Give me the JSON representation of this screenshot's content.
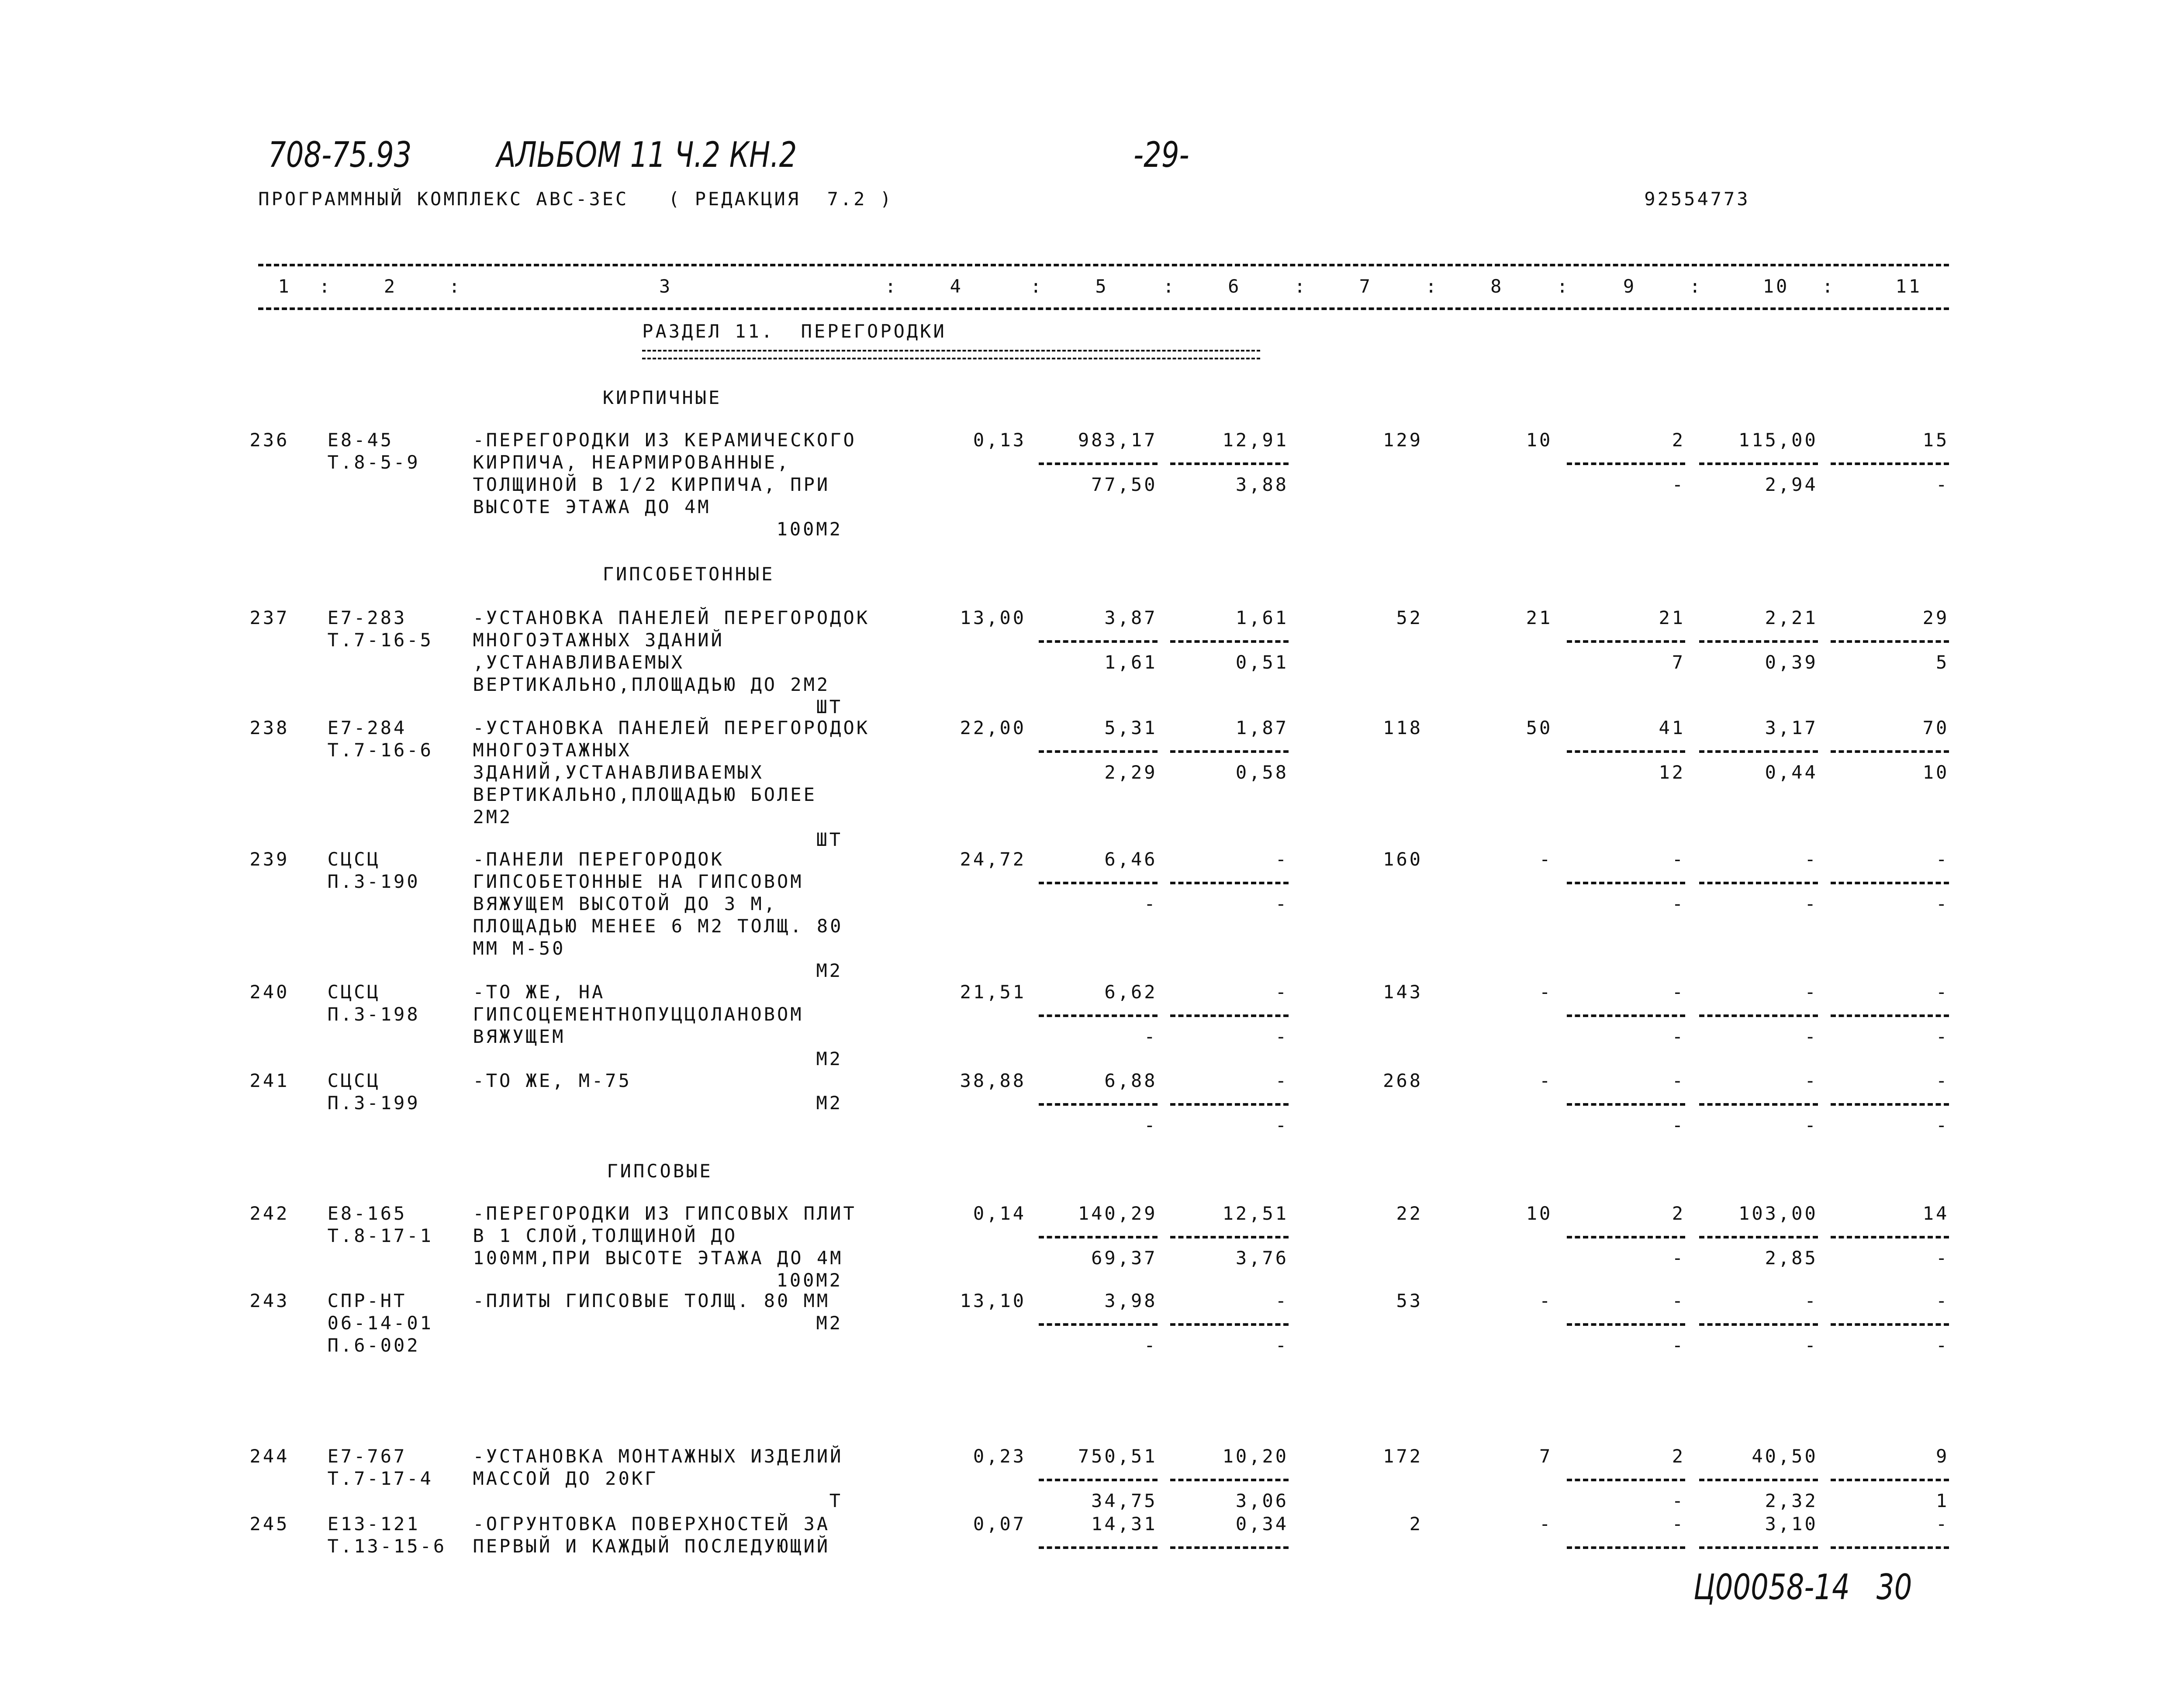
{
  "header": {
    "doc_number": "708-75.93",
    "album": "АЛЬБОМ 11 Ч.2 КН.2",
    "page": "-29-",
    "program": "ПРОГРАММНЫЙ КОМПЛЕКС АВС-3ЕС   ( РЕДАКЦИЯ  7.2 )",
    "code": "92554773"
  },
  "table": {
    "column_numbers": [
      "1",
      "2",
      "3",
      "4",
      "5",
      "6",
      "7",
      "8",
      "9",
      "10",
      "11"
    ],
    "section_title": "РАЗДЕЛ 11.  ПЕРЕГОРОДКИ",
    "groups": [
      "КИРПИЧНЫЕ",
      "ГИПСОБЕТОННЫЕ",
      "ГИПСОВЫЕ"
    ],
    "items": [
      {
        "num": "236",
        "code": [
          "Е8-45",
          "Т.8-5-9"
        ],
        "desc": [
          "-ПЕРЕГОРОДКИ ИЗ КЕРАМИЧЕСКОГО",
          "КИРПИЧА, НЕАРМИРОВАННЫЕ,",
          "ТОЛЩИНОЙ В 1/2 КИРПИЧА, ПРИ",
          "ВЫСОТЕ ЭТАЖА ДО 4М"
        ],
        "unit": "100М2",
        "c4": "0,13",
        "c5": [
          "983,17",
          "77,50"
        ],
        "c6": [
          "12,91",
          "3,88"
        ],
        "c7": "129",
        "c8": "10",
        "c9": [
          "2",
          "-"
        ],
        "c10": [
          "115,00",
          "2,94"
        ],
        "c11": [
          "15",
          "-"
        ]
      },
      {
        "num": "237",
        "code": [
          "Е7-283",
          "Т.7-16-5"
        ],
        "desc": [
          "-УСТАНОВКА ПАНЕЛЕЙ ПЕРЕГОРОДОК",
          "МНОГОЭТАЖНЫХ ЗДАНИЙ",
          ",УСТАНАВЛИВАЕМЫХ",
          "ВЕРТИКАЛЬНО,ПЛОЩАДЬЮ ДО 2М2"
        ],
        "unit": "ШТ",
        "c4": "13,00",
        "c5": [
          "3,87",
          "1,61"
        ],
        "c6": [
          "1,61",
          "0,51"
        ],
        "c7": "52",
        "c8": "21",
        "c9": [
          "21",
          "7"
        ],
        "c10": [
          "2,21",
          "0,39"
        ],
        "c11": [
          "29",
          "5"
        ]
      },
      {
        "num": "238",
        "code": [
          "Е7-284",
          "Т.7-16-6"
        ],
        "desc": [
          "-УСТАНОВКА ПАНЕЛЕЙ ПЕРЕГОРОДОК",
          "МНОГОЭТАЖНЫХ",
          "ЗДАНИЙ,УСТАНАВЛИВАЕМЫХ",
          "ВЕРТИКАЛЬНО,ПЛОЩАДЬЮ БОЛЕЕ",
          "2М2"
        ],
        "unit": "ШТ",
        "c4": "22,00",
        "c5": [
          "5,31",
          "2,29"
        ],
        "c6": [
          "1,87",
          "0,58"
        ],
        "c7": "118",
        "c8": "50",
        "c9": [
          "41",
          "12"
        ],
        "c10": [
          "3,17",
          "0,44"
        ],
        "c11": [
          "70",
          "10"
        ]
      },
      {
        "num": "239",
        "code": [
          "СЦСЦ",
          "П.3-190"
        ],
        "desc": [
          "-ПАНЕЛИ ПЕРЕГОРОДОК",
          "ГИПСОБЕТОННЫЕ НА ГИПСОВОМ",
          "ВЯЖУЩЕМ ВЫСОТОЙ ДО 3 М,",
          "ПЛОЩАДЬЮ МЕНЕЕ 6 М2 ТОЛЩ. 80",
          "ММ М-50"
        ],
        "unit": "М2",
        "c4": "24,72",
        "c5": [
          "6,46",
          "-"
        ],
        "c6": [
          "-",
          "-"
        ],
        "c7": "160",
        "c8": "-",
        "c9": [
          "-",
          "-"
        ],
        "c10": [
          "-",
          "-"
        ],
        "c11": [
          "-",
          "-"
        ]
      },
      {
        "num": "240",
        "code": [
          "СЦСЦ",
          "П.3-198"
        ],
        "desc": [
          "-ТО ЖЕ, НА",
          "ГИПСОЦЕМЕНТНОПУЦЦОЛАНОВОМ",
          "ВЯЖУЩЕМ"
        ],
        "unit": "М2",
        "c4": "21,51",
        "c5": [
          "6,62",
          "-"
        ],
        "c6": [
          "-",
          "-"
        ],
        "c7": "143",
        "c8": "-",
        "c9": [
          "-",
          "-"
        ],
        "c10": [
          "-",
          "-"
        ],
        "c11": [
          "-",
          "-"
        ]
      },
      {
        "num": "241",
        "code": [
          "СЦСЦ",
          "П.3-199"
        ],
        "desc": [
          "-ТО ЖЕ, М-75"
        ],
        "unit": "М2",
        "c4": "38,88",
        "c5": [
          "6,88",
          "-"
        ],
        "c6": [
          "-",
          "-"
        ],
        "c7": "268",
        "c8": "-",
        "c9": [
          "-",
          "-"
        ],
        "c10": [
          "-",
          "-"
        ],
        "c11": [
          "-",
          "-"
        ]
      },
      {
        "num": "242",
        "code": [
          "Е8-165",
          "Т.8-17-1"
        ],
        "desc": [
          "-ПЕРЕГОРОДКИ ИЗ ГИПСОВЫХ ПЛИТ",
          "В 1 СЛОЙ,ТОЛЩИНОЙ ДО",
          "100ММ,ПРИ ВЫСОТЕ ЭТАЖА ДО 4М"
        ],
        "unit": "100М2",
        "c4": "0,14",
        "c5": [
          "140,29",
          "69,37"
        ],
        "c6": [
          "12,51",
          "3,76"
        ],
        "c7": "22",
        "c8": "10",
        "c9": [
          "2",
          "-"
        ],
        "c10": [
          "103,00",
          "2,85"
        ],
        "c11": [
          "14",
          "-"
        ]
      },
      {
        "num": "243",
        "code": [
          "СПР-НТ",
          "06-14-01",
          "П.6-002"
        ],
        "desc": [
          "-ПЛИТЫ ГИПСОВЫЕ ТОЛЩ. 80 ММ"
        ],
        "unit": "М2",
        "c4": "13,10",
        "c5": [
          "3,98",
          "-"
        ],
        "c6": [
          "-",
          "-"
        ],
        "c7": "53",
        "c8": "-",
        "c9": [
          "-",
          "-"
        ],
        "c10": [
          "-",
          "-"
        ],
        "c11": [
          "-",
          "-"
        ]
      },
      {
        "num": "244",
        "code": [
          "Е7-767",
          "Т.7-17-4"
        ],
        "desc": [
          "-УСТАНОВКА МОНТАЖНЫХ ИЗДЕЛИЙ",
          "МАССОЙ ДО 20КГ"
        ],
        "unit": "Т",
        "c4": "0,23",
        "c5": [
          "750,51",
          "34,75"
        ],
        "c6": [
          "10,20",
          "3,06"
        ],
        "c7": "172",
        "c8": "7",
        "c9": [
          "2",
          "-"
        ],
        "c10": [
          "40,50",
          "2,32"
        ],
        "c11": [
          "9",
          "1"
        ]
      },
      {
        "num": "245",
        "code": [
          "Е13-121",
          "Т.13-15-6"
        ],
        "desc": [
          "-ОГРУНТОВКА ПОВЕРХНОСТЕЙ ЗА",
          "ПЕРВЫЙ И КАЖДЫЙ ПОСЛЕДУЮЩИЙ"
        ],
        "c4": "0,07",
        "c5": [
          "14,31"
        ],
        "c6": [
          "0,34"
        ],
        "c7": "2",
        "c8": "-",
        "c9": [
          "-"
        ],
        "c10": [
          "3,10"
        ],
        "c11": [
          "-"
        ]
      }
    ]
  },
  "footer": {
    "stamp": "Ц00058-14   30"
  }
}
